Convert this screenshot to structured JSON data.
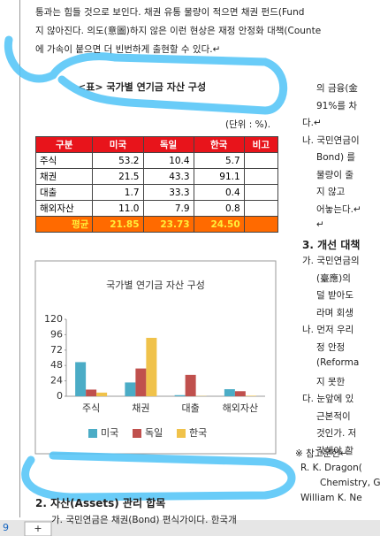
{
  "document": {
    "top_lines": [
      "통과는 힘들 것으로 보인다. 채권 유통 물량이 적으면 채권 펀드(Fund",
      "지 않아진다. 의도(意圖)하지 않은 이런 현상은 재정 안정화 대책(Counte",
      "에 가속이 붙으면 더 빈번하게 출현할 수 있다.↵"
    ],
    "caption": "<표> 국가별 연기금 자산 구성",
    "unit": "(단위 : %).",
    "right_lines": [
      "의 금융(金",
      "91%를 차",
      "다.↵",
      "나. 국민연금이",
      "Bond) 를",
      "물량이 줄",
      "지 않고",
      "어놓는다.↵",
      "↵",
      "3. 개선 대책",
      "가. 국민연금의",
      "(臺應)의",
      "덜 받아도",
      "라며 회생",
      "나. 먼저 우리",
      "정 안정",
      "(Reforma",
      "지 못한",
      "다. 눈앞에 있",
      "근본적이",
      "것인가. 저",
      "각해야 할"
    ],
    "references_title": "※ 참고문헌↵",
    "references": [
      "R. K. Dragon(",
      "Chemistry, G",
      "William K. Ne"
    ],
    "section_heading": "2. 자산(Assets) 관리 합목",
    "bottom_line": "가. 국민연금은 채권(Bond) 편식가이다. 한국개",
    "page_number": "9"
  },
  "table": {
    "header": [
      "구분",
      "미국",
      "독일",
      "한국",
      "비고"
    ],
    "rows": [
      [
        "주식",
        "53.2",
        "10.4",
        "5.7",
        ""
      ],
      [
        "채권",
        "21.5",
        "43.3",
        "91.1",
        ""
      ],
      [
        "대출",
        "1.7",
        "33.3",
        "0.4",
        ""
      ],
      [
        "해외자산",
        "11.0",
        "7.9",
        "0.8",
        ""
      ]
    ],
    "average": [
      "평균",
      "21.85",
      "23.73",
      "24.50",
      ""
    ]
  },
  "chart_data": {
    "type": "bar",
    "title": "국가별 연기금 자산 구성",
    "categories": [
      "주식",
      "채권",
      "대출",
      "해외자산"
    ],
    "series": [
      {
        "name": "미국",
        "color": "#4bacc6",
        "values": [
          53.2,
          21.5,
          1.7,
          11.0
        ]
      },
      {
        "name": "독일",
        "color": "#c0504d",
        "values": [
          10.4,
          43.3,
          33.3,
          7.9
        ]
      },
      {
        "name": "한국",
        "color": "#f0c24a",
        "values": [
          5.7,
          91.1,
          0.4,
          0.8
        ]
      }
    ],
    "ylim": [
      0,
      120
    ],
    "yticks": [
      0,
      24,
      48,
      72,
      96,
      120
    ]
  }
}
